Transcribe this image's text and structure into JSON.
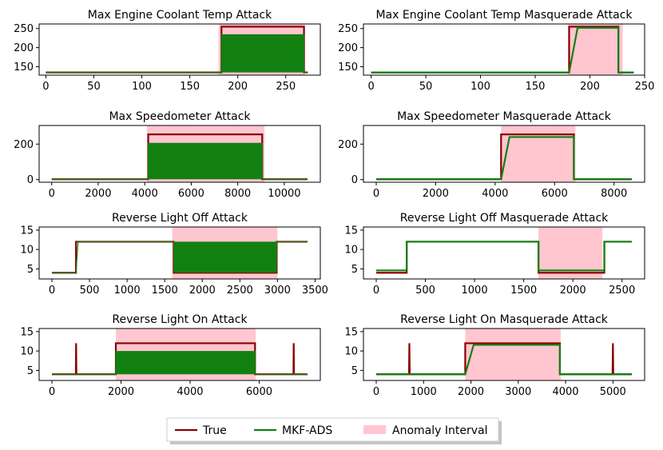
{
  "legend": {
    "items": [
      {
        "label": "True",
        "color": "#8b0000",
        "kind": "line"
      },
      {
        "label": "MKF-ADS",
        "color": "#118011",
        "kind": "line"
      },
      {
        "label": "Anomaly Interval",
        "color": "#ffc6d0",
        "kind": "patch"
      }
    ]
  },
  "chart_data": [
    {
      "type": "line",
      "title": "Max Engine Coolant Temp Attack",
      "xlim": [
        -7,
        286
      ],
      "ylim": [
        128,
        262
      ],
      "xticks": [
        0,
        50,
        100,
        150,
        200,
        250
      ],
      "yticks": [
        150,
        200,
        250
      ],
      "anomaly_interval": [
        180,
        270
      ],
      "baseline": 135,
      "attack_value": 255,
      "attack_start": 183,
      "attack_end": 269,
      "series_end": 273,
      "true_trace": "high",
      "prediction_trace": "oscillating"
    },
    {
      "type": "line",
      "title": "Max Engine Coolant Temp Masquerade Attack",
      "xlim": [
        -7,
        250
      ],
      "ylim": [
        128,
        262
      ],
      "xticks": [
        0,
        50,
        100,
        150,
        200,
        250
      ],
      "yticks": [
        150,
        200,
        250
      ],
      "anomaly_interval": [
        180,
        230
      ],
      "baseline": 135,
      "attack_value": 255,
      "prediction_level": 252,
      "attack_start": 181,
      "attack_end": 226,
      "series_end": 240,
      "true_trace": "high",
      "prediction_trace": "flat"
    },
    {
      "type": "line",
      "title": "Max Speedometer Attack",
      "xlim": [
        -540,
        11550
      ],
      "ylim": [
        -15,
        305
      ],
      "xticks": [
        0,
        2000,
        4000,
        6000,
        8000,
        10000
      ],
      "yticks": [
        0,
        200
      ],
      "anomaly_interval": [
        4100,
        9150
      ],
      "baseline": 2,
      "attack_value": 255,
      "attack_start": 4150,
      "attack_end": 9050,
      "series_end": 11000,
      "true_trace": "high",
      "prediction_trace": "oscillating"
    },
    {
      "type": "line",
      "title": "Max Speedometer Masquerade Attack",
      "xlim": [
        -430,
        9030
      ],
      "ylim": [
        -15,
        305
      ],
      "xticks": [
        0,
        2000,
        4000,
        6000,
        8000
      ],
      "yticks": [
        0,
        200
      ],
      "anomaly_interval": [
        4200,
        6700
      ],
      "baseline": 2,
      "attack_value": 255,
      "prediction_level": 240,
      "attack_start": 4200,
      "attack_end": 6650,
      "series_end": 8600,
      "true_trace": "high",
      "prediction_trace": "flat"
    },
    {
      "type": "line",
      "title": "Reverse Light Off Attack",
      "xlim": [
        -170,
        3570
      ],
      "ylim": [
        2.4,
        15.8
      ],
      "xticks": [
        0,
        500,
        1000,
        1500,
        2000,
        2500,
        3000,
        3500
      ],
      "yticks": [
        5,
        10,
        15
      ],
      "anomaly_interval": [
        1600,
        3000
      ],
      "low_value": 4,
      "high_value": 12,
      "rise_at": 320,
      "attack_start": 1620,
      "attack_end": 2990,
      "series_end": 3400,
      "true_trace": "low",
      "prediction_trace": "oscillating"
    },
    {
      "type": "line",
      "title": "Reverse Light Off Masquerade Attack",
      "xlim": [
        -130,
        2730
      ],
      "ylim": [
        2.4,
        15.8
      ],
      "xticks": [
        0,
        500,
        1000,
        1500,
        2000,
        2500
      ],
      "yticks": [
        5,
        10,
        15
      ],
      "anomaly_interval": [
        1650,
        2300
      ],
      "low_value": 4,
      "high_value": 12,
      "rise_at": 310,
      "prediction_level": 4.6,
      "attack_start": 1650,
      "attack_end": 2320,
      "series_end": 2600,
      "true_trace": "low",
      "prediction_trace": "flat"
    },
    {
      "type": "line",
      "title": "Reverse Light On Attack",
      "xlim": [
        -370,
        7770
      ],
      "ylim": [
        2.4,
        15.8
      ],
      "xticks": [
        0,
        2000,
        4000,
        6000
      ],
      "yticks": [
        5,
        10,
        15
      ],
      "anomaly_interval": [
        1850,
        5900
      ],
      "baseline": 4,
      "attack_value": 12,
      "attack_start": 1850,
      "attack_end": 5880,
      "series_end": 7400,
      "spikes": [
        700,
        7000
      ],
      "spike_value": 12,
      "true_trace": "high",
      "prediction_trace": "oscillating"
    },
    {
      "type": "line",
      "title": "Reverse Light On Masquerade Attack",
      "xlim": [
        -270,
        5670
      ],
      "ylim": [
        2.4,
        15.8
      ],
      "xticks": [
        0,
        1000,
        2000,
        3000,
        4000,
        5000
      ],
      "yticks": [
        5,
        10,
        15
      ],
      "anomaly_interval": [
        1880,
        3900
      ],
      "baseline": 4,
      "attack_value": 12,
      "prediction_level": 11.6,
      "attack_start": 1880,
      "attack_end": 3880,
      "series_end": 5400,
      "spikes": [
        700,
        5000
      ],
      "spike_value": 12,
      "true_trace": "high",
      "prediction_trace": "flat"
    }
  ]
}
